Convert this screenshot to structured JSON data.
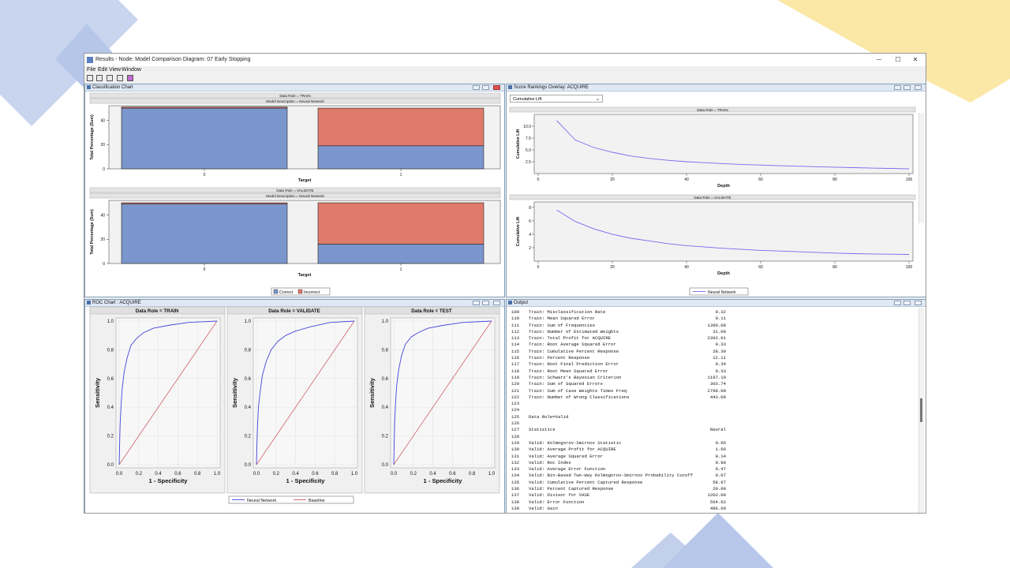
{
  "window": {
    "title": "Results - Node: Model Comparison  Diagram: 07 Early Stopping",
    "controls": {
      "min": "─",
      "max": "☐",
      "close": "✕"
    }
  },
  "menu": [
    "File",
    "Edit",
    "View",
    "Window"
  ],
  "classification": {
    "title": "Classification Chart",
    "sections": [
      {
        "role": "Data Role = TRAIN",
        "desc": "Model Description = Neural Network"
      },
      {
        "role": "Data Role = VALIDATE",
        "desc": "Model Description = Neural Network"
      }
    ],
    "ylabel": "Total Percentage (Sum)",
    "xlabel": "Target",
    "yticks": [
      "0",
      "20",
      "40"
    ],
    "xticks": [
      "0",
      "1"
    ],
    "legend": {
      "correct": "Correct",
      "incorrect": "Incorrect"
    },
    "colors": {
      "correct": "#7b96cc",
      "incorrect": "#e07a6a"
    }
  },
  "score": {
    "title": "Score Rankings Overlay: ACQUIRE",
    "dropdown": "Cumulative Lift",
    "charts": [
      {
        "role": "Data Role = TRAIN",
        "yticks": [
          "2.5",
          "5.0",
          "7.5",
          "10.0"
        ]
      },
      {
        "role": "Data Role = VALIDATE",
        "yticks": [
          "2",
          "4",
          "6",
          "8"
        ]
      }
    ],
    "ylabel": "Cumulative Lift",
    "xlabel": "Depth",
    "xticks": [
      "0",
      "20",
      "40",
      "60",
      "80",
      "100"
    ],
    "legend": "Neural Network",
    "line_color": "#7b68ee"
  },
  "roc": {
    "title": "ROC Chart : ACQUIRE",
    "panels": [
      {
        "label": "Data Role = TRAIN"
      },
      {
        "label": "Data Role = VALIDATE"
      },
      {
        "label": "Data Role = TEST"
      }
    ],
    "ylabel": "Sensitivity",
    "xlabel": "1 - Specificity",
    "ticks": [
      "0.0",
      "0.2",
      "0.4",
      "0.6",
      "0.8",
      "1.0"
    ],
    "legend": {
      "model": "Neural Network",
      "baseline": "Baseline"
    },
    "colors": {
      "model": "#4444dd",
      "baseline": "#d0606a"
    }
  },
  "output": {
    "title": "Output",
    "lines": [
      {
        "n": "109",
        "label": "Train: Misclassification Rate",
        "value": "0.32"
      },
      {
        "n": "110",
        "label": "Train: Mean Squared Error",
        "value": "0.11"
      },
      {
        "n": "111",
        "label": "Train: Sum of Frequencies",
        "value": "1399.00"
      },
      {
        "n": "112",
        "label": "Train: Number of Estimated Weights",
        "value": "31.00"
      },
      {
        "n": "113",
        "label": "Train: Total Profit for ACQUIRE",
        "value": "2392.01"
      },
      {
        "n": "114",
        "label": "Train: Root Average Squared Error",
        "value": "0.33"
      },
      {
        "n": "115",
        "label": "Train: Cumulative Percent Response",
        "value": "28.39"
      },
      {
        "n": "116",
        "label": "Train: Percent Response",
        "value": "12.11"
      },
      {
        "n": "117",
        "label": "Train: Root Final Prediction Error",
        "value": "0.34"
      },
      {
        "n": "118",
        "label": "Train: Root Mean Squared Error",
        "value": "0.33"
      },
      {
        "n": "119",
        "label": "Train: Schwarz's Bayesian Criterion",
        "value": "1197.19"
      },
      {
        "n": "120",
        "label": "Train: Sum of Squared Errors",
        "value": "303.74"
      },
      {
        "n": "121",
        "label": "Train: Sum of Case Weights Times Freq",
        "value": "2798.00"
      },
      {
        "n": "122",
        "label": "Train: Number of Wrong Classifications",
        "value": "443.00"
      },
      {
        "n": "123",
        "label": "",
        "value": ""
      },
      {
        "n": "124",
        "label": "",
        "value": ""
      },
      {
        "n": "125",
        "label": "Data Role=Valid",
        "value": ""
      },
      {
        "n": "126",
        "label": "",
        "value": ""
      },
      {
        "n": "127",
        "label": "Statistics",
        "value": "Neural"
      },
      {
        "n": "128",
        "label": "",
        "value": ""
      },
      {
        "n": "129",
        "label": "Valid: Kolmogorov-Smirnov Statistic",
        "value": "0.66"
      },
      {
        "n": "130",
        "label": "Valid: Average Profit for ACQUIRE",
        "value": "1.66"
      },
      {
        "n": "131",
        "label": "Valid: Average Squared Error",
        "value": "0.14"
      },
      {
        "n": "132",
        "label": "Valid: Roc Index",
        "value": "0.88"
      },
      {
        "n": "133",
        "label": "Valid: Average Error Function",
        "value": "0.47"
      },
      {
        "n": "134",
        "label": "Valid: Bin-Based Two-Way Kolmogorov-Smirnov Probability Cutoff",
        "value": "0.07"
      },
      {
        "n": "135",
        "label": "Valid: Cumulative Percent Captured Response",
        "value": "58.67"
      },
      {
        "n": "136",
        "label": "Valid: Percent Captured Response",
        "value": "20.00"
      },
      {
        "n": "137",
        "label": "Valid: Divisor for VASE",
        "value": "1202.00"
      },
      {
        "n": "138",
        "label": "Valid: Error Function",
        "value": "564.62"
      },
      {
        "n": "139",
        "label": "Valid: Gain",
        "value": "486.60"
      }
    ]
  },
  "chart_data": [
    {
      "type": "bar",
      "title": "Data Role = TRAIN",
      "subtitle": "Model Description = Neural Network",
      "xlabel": "Target",
      "ylabel": "Total Percentage (Sum)",
      "categories": [
        "0",
        "1"
      ],
      "series": [
        {
          "name": "Correct",
          "values": [
            50,
            19
          ]
        },
        {
          "name": "Incorrect",
          "values": [
            1,
            31
          ]
        }
      ],
      "ylim": [
        0,
        52
      ]
    },
    {
      "type": "bar",
      "title": "Data Role = VALIDATE",
      "subtitle": "Model Description = Neural Network",
      "xlabel": "Target",
      "ylabel": "Total Percentage (Sum)",
      "categories": [
        "0",
        "1"
      ],
      "series": [
        {
          "name": "Correct",
          "values": [
            49,
            16
          ]
        },
        {
          "name": "Incorrect",
          "values": [
            1,
            34
          ]
        }
      ],
      "ylim": [
        0,
        52
      ]
    },
    {
      "type": "line",
      "title": "Data Role = TRAIN",
      "xlabel": "Depth",
      "ylabel": "Cumulative Lift",
      "x": [
        5,
        10,
        15,
        20,
        25,
        30,
        35,
        40,
        45,
        50,
        55,
        60,
        65,
        70,
        75,
        80,
        85,
        90,
        95,
        100
      ],
      "series": [
        {
          "name": "Neural Network",
          "values": [
            11.2,
            7.1,
            5.5,
            4.5,
            3.7,
            3.2,
            2.8,
            2.5,
            2.3,
            2.1,
            1.9,
            1.8,
            1.65,
            1.55,
            1.45,
            1.35,
            1.25,
            1.15,
            1.08,
            1.0
          ]
        }
      ],
      "xlim": [
        0,
        100
      ],
      "ylim": [
        0,
        12.5
      ]
    },
    {
      "type": "line",
      "title": "Data Role = VALIDATE",
      "xlabel": "Depth",
      "ylabel": "Cumulative Lift",
      "x": [
        5,
        10,
        15,
        20,
        25,
        30,
        35,
        40,
        45,
        50,
        55,
        60,
        65,
        70,
        75,
        80,
        85,
        90,
        95,
        100
      ],
      "series": [
        {
          "name": "Neural Network",
          "values": [
            7.6,
            5.9,
            4.8,
            4.0,
            3.4,
            3.0,
            2.6,
            2.3,
            2.1,
            1.9,
            1.75,
            1.6,
            1.5,
            1.4,
            1.3,
            1.2,
            1.12,
            1.07,
            1.03,
            1.0
          ]
        }
      ],
      "xlim": [
        0,
        100
      ],
      "ylim": [
        0,
        8.8
      ]
    },
    {
      "type": "line",
      "title": "Data Role = TRAIN",
      "xlabel": "1 - Specificity",
      "ylabel": "Sensitivity",
      "series": [
        {
          "name": "Neural Network",
          "x": [
            0,
            0.01,
            0.02,
            0.03,
            0.05,
            0.08,
            0.12,
            0.18,
            0.25,
            0.35,
            0.5,
            0.7,
            1.0
          ],
          "values": [
            0,
            0.28,
            0.42,
            0.52,
            0.64,
            0.74,
            0.83,
            0.88,
            0.92,
            0.95,
            0.97,
            0.99,
            1.0
          ]
        },
        {
          "name": "Baseline",
          "x": [
            0,
            1
          ],
          "values": [
            0,
            1
          ]
        }
      ],
      "xlim": [
        0,
        1
      ],
      "ylim": [
        0,
        1
      ]
    },
    {
      "type": "line",
      "title": "Data Role = VALIDATE",
      "xlabel": "1 - Specificity",
      "ylabel": "Sensitivity",
      "series": [
        {
          "name": "Neural Network",
          "x": [
            0,
            0.01,
            0.02,
            0.04,
            0.06,
            0.1,
            0.15,
            0.22,
            0.3,
            0.4,
            0.55,
            0.75,
            1.0
          ],
          "values": [
            0,
            0.25,
            0.4,
            0.52,
            0.62,
            0.72,
            0.8,
            0.86,
            0.9,
            0.93,
            0.96,
            0.99,
            1.0
          ]
        },
        {
          "name": "Baseline",
          "x": [
            0,
            1
          ],
          "values": [
            0,
            1
          ]
        }
      ],
      "xlim": [
        0,
        1
      ],
      "ylim": [
        0,
        1
      ]
    },
    {
      "type": "line",
      "title": "Data Role = TEST",
      "xlabel": "1 - Specificity",
      "ylabel": "Sensitivity",
      "series": [
        {
          "name": "Neural Network",
          "x": [
            0,
            0.01,
            0.02,
            0.03,
            0.05,
            0.08,
            0.12,
            0.18,
            0.25,
            0.35,
            0.5,
            0.7,
            1.0
          ],
          "values": [
            0,
            0.3,
            0.45,
            0.55,
            0.66,
            0.76,
            0.84,
            0.89,
            0.92,
            0.95,
            0.97,
            0.99,
            1.0
          ]
        },
        {
          "name": "Baseline",
          "x": [
            0,
            1
          ],
          "values": [
            0,
            1
          ]
        }
      ],
      "xlim": [
        0,
        1
      ],
      "ylim": [
        0,
        1
      ]
    }
  ]
}
